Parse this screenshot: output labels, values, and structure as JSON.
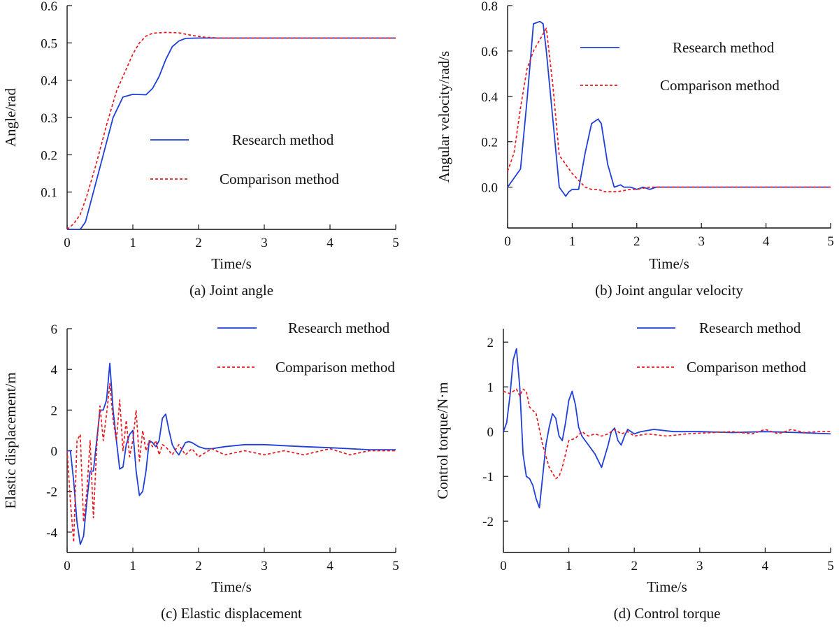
{
  "colors": {
    "research": "#1f3fd6",
    "comparison": "#e8191f",
    "axis": "#111111"
  },
  "chart_data": [
    {
      "id": "a",
      "type": "line",
      "caption": "(a) Joint angle",
      "xlabel": "Time/s",
      "ylabel": "Angle/rad",
      "xlim": [
        0,
        5
      ],
      "ylim": [
        0,
        0.6
      ],
      "xticks": [
        0,
        1,
        2,
        3,
        4,
        5
      ],
      "xtick_labels": [
        "0",
        "1",
        "2",
        "3",
        "4",
        "5"
      ],
      "yticks": [
        0.1,
        0.2,
        0.3,
        0.4,
        0.5,
        0.6
      ],
      "ytick_labels": [
        "0.1",
        "0.2",
        "0.3",
        "0.4",
        "0.5",
        "0.6"
      ],
      "legend": {
        "position": "center-right",
        "entries": [
          "Research method",
          "Comparison method"
        ]
      },
      "series": [
        {
          "name": "Research method",
          "style": "solid",
          "x": [
            0,
            0.2,
            0.28,
            0.4,
            0.55,
            0.7,
            0.85,
            1.0,
            1.2,
            1.3,
            1.4,
            1.5,
            1.6,
            1.7,
            1.8,
            2.0,
            2.2,
            3,
            4,
            5
          ],
          "y": [
            0,
            0,
            0.02,
            0.1,
            0.2,
            0.3,
            0.355,
            0.362,
            0.361,
            0.378,
            0.41,
            0.455,
            0.49,
            0.505,
            0.512,
            0.513,
            0.513,
            0.513,
            0.513,
            0.513
          ]
        },
        {
          "name": "Comparison method",
          "style": "dashed",
          "x": [
            0,
            0.1,
            0.2,
            0.3,
            0.45,
            0.6,
            0.75,
            0.9,
            1.0,
            1.1,
            1.2,
            1.3,
            1.5,
            1.7,
            1.9,
            2.1,
            2.3,
            3,
            4,
            5
          ],
          "y": [
            0,
            0.015,
            0.04,
            0.09,
            0.18,
            0.28,
            0.37,
            0.43,
            0.47,
            0.5,
            0.518,
            0.526,
            0.528,
            0.527,
            0.52,
            0.515,
            0.513,
            0.513,
            0.513,
            0.513
          ]
        }
      ]
    },
    {
      "id": "b",
      "type": "line",
      "caption": "(b) Joint angular velocity",
      "xlabel": "Time/s",
      "ylabel": "Angular velocity/rad/s",
      "xlim": [
        0,
        5
      ],
      "ylim": [
        -0.18,
        0.8
      ],
      "xticks": [
        0,
        1,
        2,
        3,
        4,
        5
      ],
      "xtick_labels": [
        "0",
        "1",
        "2",
        "3",
        "4",
        "5"
      ],
      "yticks": [
        0.0,
        0.2,
        0.4,
        0.6,
        0.8
      ],
      "ytick_labels": [
        "0.0",
        "0.2",
        "0.4",
        "0.6",
        "0.8"
      ],
      "legend": {
        "position": "top-right",
        "entries": [
          "Research method",
          "Comparison method"
        ]
      },
      "series": [
        {
          "name": "Research method",
          "style": "solid",
          "x": [
            0,
            0.2,
            0.3,
            0.4,
            0.5,
            0.55,
            0.6,
            0.7,
            0.8,
            0.9,
            0.95,
            1.0,
            1.05,
            1.1,
            1.2,
            1.3,
            1.4,
            1.45,
            1.55,
            1.65,
            1.75,
            1.8,
            1.9,
            2.0,
            2.1,
            2.2,
            2.3,
            2.4,
            3,
            4,
            5
          ],
          "y": [
            0,
            0.08,
            0.38,
            0.72,
            0.73,
            0.72,
            0.6,
            0.3,
            0.0,
            -0.04,
            -0.02,
            -0.01,
            -0.01,
            -0.01,
            0.15,
            0.28,
            0.3,
            0.28,
            0.1,
            0.0,
            0.01,
            0.0,
            0.0,
            -0.01,
            0.0,
            -0.01,
            0.0,
            0.0,
            0.0,
            0.0,
            0.0
          ]
        },
        {
          "name": "Comparison method",
          "style": "dashed",
          "x": [
            0,
            0.1,
            0.2,
            0.3,
            0.4,
            0.5,
            0.6,
            0.7,
            0.8,
            0.9,
            1.0,
            1.1,
            1.2,
            1.3,
            1.4,
            1.5,
            1.6,
            1.7,
            1.8,
            1.9,
            2.0,
            2.1,
            2.2,
            2.3,
            2.4,
            3,
            4,
            5
          ],
          "y": [
            0.07,
            0.15,
            0.35,
            0.52,
            0.6,
            0.65,
            0.7,
            0.45,
            0.14,
            0.1,
            0.06,
            0.03,
            0.0,
            -0.01,
            -0.01,
            -0.02,
            -0.02,
            -0.02,
            -0.015,
            -0.01,
            -0.01,
            -0.005,
            0.0,
            0.0,
            0.0,
            0.0,
            0.0,
            0.0
          ]
        }
      ]
    },
    {
      "id": "c",
      "type": "line",
      "caption": "(c) Elastic displacement",
      "xlabel": "Time/s",
      "ylabel": "Elastic displacement/m",
      "xlim": [
        0,
        5
      ],
      "ylim": [
        -5,
        6
      ],
      "xticks": [
        0,
        1,
        2,
        3,
        4,
        5
      ],
      "xtick_labels": [
        "0",
        "1",
        "2",
        "3",
        "4",
        "5"
      ],
      "yticks": [
        -4,
        -2,
        0,
        2,
        4,
        6
      ],
      "ytick_labels": [
        "-4",
        "-2",
        "0",
        "2",
        "4",
        "6"
      ],
      "legend": {
        "position": "top-right",
        "entries": [
          "Research method",
          "Comparison method"
        ]
      },
      "series": [
        {
          "name": "Research method",
          "style": "solid",
          "x": [
            0,
            0.05,
            0.1,
            0.15,
            0.2,
            0.25,
            0.3,
            0.35,
            0.4,
            0.45,
            0.5,
            0.55,
            0.6,
            0.65,
            0.7,
            0.75,
            0.8,
            0.85,
            0.9,
            0.95,
            1.0,
            1.05,
            1.1,
            1.15,
            1.2,
            1.25,
            1.3,
            1.35,
            1.4,
            1.45,
            1.5,
            1.55,
            1.6,
            1.65,
            1.7,
            1.75,
            1.8,
            1.85,
            1.9,
            2.0,
            2.1,
            2.2,
            2.4,
            2.7,
            3.0,
            3.3,
            3.6,
            4.0,
            4.3,
            4.6,
            5.0
          ],
          "y": [
            0,
            0,
            -1.5,
            -3.5,
            -4.6,
            -4.2,
            -2.5,
            -1.0,
            -1.0,
            0.5,
            2.0,
            2.0,
            2.5,
            4.3,
            2.0,
            0.5,
            -0.9,
            -0.8,
            0.3,
            0.8,
            1.0,
            -1.0,
            -2.2,
            -2.0,
            -1.0,
            0.5,
            0.4,
            0.2,
            0.5,
            1.6,
            1.8,
            1.0,
            0.3,
            0.0,
            -0.2,
            0.1,
            0.4,
            0.45,
            0.4,
            0.2,
            0.1,
            0.1,
            0.2,
            0.3,
            0.3,
            0.25,
            0.2,
            0.15,
            0.1,
            0.05,
            0.05
          ]
        },
        {
          "name": "Comparison method",
          "style": "dashed",
          "x": [
            0,
            0.05,
            0.1,
            0.15,
            0.2,
            0.25,
            0.3,
            0.35,
            0.4,
            0.45,
            0.5,
            0.55,
            0.6,
            0.65,
            0.7,
            0.75,
            0.8,
            0.85,
            0.9,
            0.95,
            1.0,
            1.05,
            1.1,
            1.15,
            1.2,
            1.25,
            1.3,
            1.35,
            1.4,
            1.45,
            1.5,
            1.6,
            1.7,
            1.8,
            1.9,
            2.0,
            2.2,
            2.4,
            2.7,
            3.0,
            3.3,
            3.6,
            4.0,
            4.3,
            4.6,
            5.0
          ],
          "y": [
            0,
            -2.5,
            -4.5,
            0.5,
            0.8,
            -3.5,
            -2.0,
            0.5,
            -3.3,
            0.2,
            2.2,
            0.5,
            1.8,
            3.3,
            1.5,
            0.5,
            2.5,
            0.0,
            1.5,
            -0.3,
            0.5,
            2.0,
            -0.5,
            1.0,
            0.0,
            0.5,
            0.2,
            0.5,
            -0.2,
            0.3,
            0.2,
            -0.2,
            0.3,
            -0.2,
            0.1,
            -0.3,
            0.1,
            -0.2,
            0.0,
            -0.2,
            0.0,
            -0.2,
            0.1,
            -0.2,
            0.0,
            0.0
          ]
        }
      ]
    },
    {
      "id": "d",
      "type": "line",
      "caption": "(d) Control torque",
      "xlabel": "Time/s",
      "ylabel": "Control torque/N·m",
      "xlim": [
        0,
        5
      ],
      "ylim": [
        -2.7,
        2.3
      ],
      "xticks": [
        0,
        1,
        2,
        3,
        4,
        5
      ],
      "xtick_labels": [
        "0",
        "1",
        "2",
        "3",
        "4",
        "5"
      ],
      "yticks": [
        -2,
        -1,
        0,
        1,
        2
      ],
      "ytick_labels": [
        "-2",
        "-1",
        "0",
        "1",
        "2"
      ],
      "legend": {
        "position": "top-right",
        "entries": [
          "Research method",
          "Comparison method"
        ]
      },
      "series": [
        {
          "name": "Research method",
          "style": "solid",
          "x": [
            0,
            0.05,
            0.1,
            0.15,
            0.2,
            0.25,
            0.3,
            0.35,
            0.4,
            0.45,
            0.5,
            0.55,
            0.6,
            0.65,
            0.7,
            0.75,
            0.8,
            0.85,
            0.9,
            0.95,
            1.0,
            1.05,
            1.1,
            1.15,
            1.2,
            1.25,
            1.3,
            1.4,
            1.5,
            1.6,
            1.65,
            1.7,
            1.75,
            1.8,
            1.85,
            1.9,
            2.0,
            2.1,
            2.3,
            2.6,
            3.0,
            3.5,
            4.0,
            4.5,
            5.0
          ],
          "y": [
            0,
            0.2,
            0.8,
            1.6,
            1.85,
            1.0,
            -0.5,
            -1.0,
            -1.05,
            -1.2,
            -1.5,
            -1.7,
            -1.0,
            -0.3,
            0.1,
            0.4,
            0.3,
            -0.1,
            -0.2,
            0.2,
            0.7,
            0.9,
            0.6,
            0.1,
            -0.1,
            -0.2,
            -0.3,
            -0.5,
            -0.8,
            -0.3,
            0.0,
            0.08,
            -0.2,
            -0.3,
            -0.1,
            0.05,
            -0.05,
            0.0,
            0.05,
            0.0,
            0.0,
            -0.02,
            0.0,
            -0.02,
            -0.05
          ]
        },
        {
          "name": "Comparison method",
          "style": "dashed",
          "x": [
            0,
            0.1,
            0.2,
            0.25,
            0.3,
            0.35,
            0.4,
            0.5,
            0.6,
            0.7,
            0.8,
            0.85,
            0.9,
            1.0,
            1.1,
            1.2,
            1.3,
            1.4,
            1.5,
            1.6,
            1.7,
            1.8,
            1.9,
            2.0,
            2.2,
            2.5,
            2.8,
            3.2,
            3.5,
            3.8,
            4.0,
            4.2,
            4.4,
            4.6,
            4.8,
            5.0
          ],
          "y": [
            0.9,
            0.85,
            0.95,
            0.8,
            0.95,
            0.9,
            0.55,
            0.4,
            -0.3,
            -0.8,
            -1.05,
            -1.0,
            -0.8,
            -0.2,
            -0.15,
            0.0,
            -0.1,
            -0.05,
            -0.1,
            -0.05,
            0.05,
            -0.05,
            0.0,
            -0.1,
            -0.05,
            -0.1,
            -0.05,
            -0.02,
            0.0,
            -0.05,
            0.05,
            -0.05,
            0.05,
            -0.02,
            0.0,
            0.0
          ]
        }
      ]
    }
  ]
}
